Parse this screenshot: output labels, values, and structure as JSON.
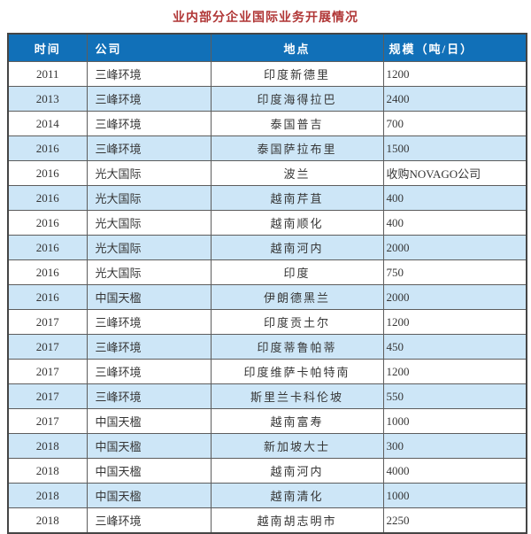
{
  "title": "业内部分企业国际业务开展情况",
  "colors": {
    "header_bg": "#1170b8",
    "stripe_bg": "#cde6f7",
    "title_color": "#b03636",
    "border": "#5d5d5d",
    "header_text": "#ffffff",
    "body_text": "#363636"
  },
  "table": {
    "headers": [
      "时间",
      "公司",
      "地点",
      "规模（吨/日）"
    ],
    "rows": [
      [
        "2011",
        "三峰环境",
        "印度新德里",
        "1200"
      ],
      [
        "2013",
        "三峰环境",
        "印度海得拉巴",
        "2400"
      ],
      [
        "2014",
        "三峰环境",
        "泰国普吉",
        "700"
      ],
      [
        "2016",
        "三峰环境",
        "泰国萨拉布里",
        "1500"
      ],
      [
        "2016",
        "光大国际",
        "波兰",
        "收购NOVAGO公司"
      ],
      [
        "2016",
        "光大国际",
        "越南芹苴",
        "400"
      ],
      [
        "2016",
        "光大国际",
        "越南顺化",
        "400"
      ],
      [
        "2016",
        "光大国际",
        "越南河内",
        "2000"
      ],
      [
        "2016",
        "光大国际",
        "印度",
        "750"
      ],
      [
        "2016",
        "中国天楹",
        "伊朗德黑兰",
        "2000"
      ],
      [
        "2017",
        "三峰环境",
        "印度贡土尔",
        "1200"
      ],
      [
        "2017",
        "三峰环境",
        "印度蒂鲁帕蒂",
        "450"
      ],
      [
        "2017",
        "三峰环境",
        "印度维萨卡帕特南",
        "1200"
      ],
      [
        "2017",
        "三峰环境",
        "斯里兰卡科伦坡",
        "550"
      ],
      [
        "2017",
        "中国天楹",
        "越南富寿",
        "1000"
      ],
      [
        "2018",
        "中国天楹",
        "新加坡大士",
        "300"
      ],
      [
        "2018",
        "中国天楹",
        "越南河内",
        "4000"
      ],
      [
        "2018",
        "中国天楹",
        "越南清化",
        "1000"
      ],
      [
        "2018",
        "三峰环境",
        "越南胡志明市",
        "2250"
      ]
    ]
  }
}
